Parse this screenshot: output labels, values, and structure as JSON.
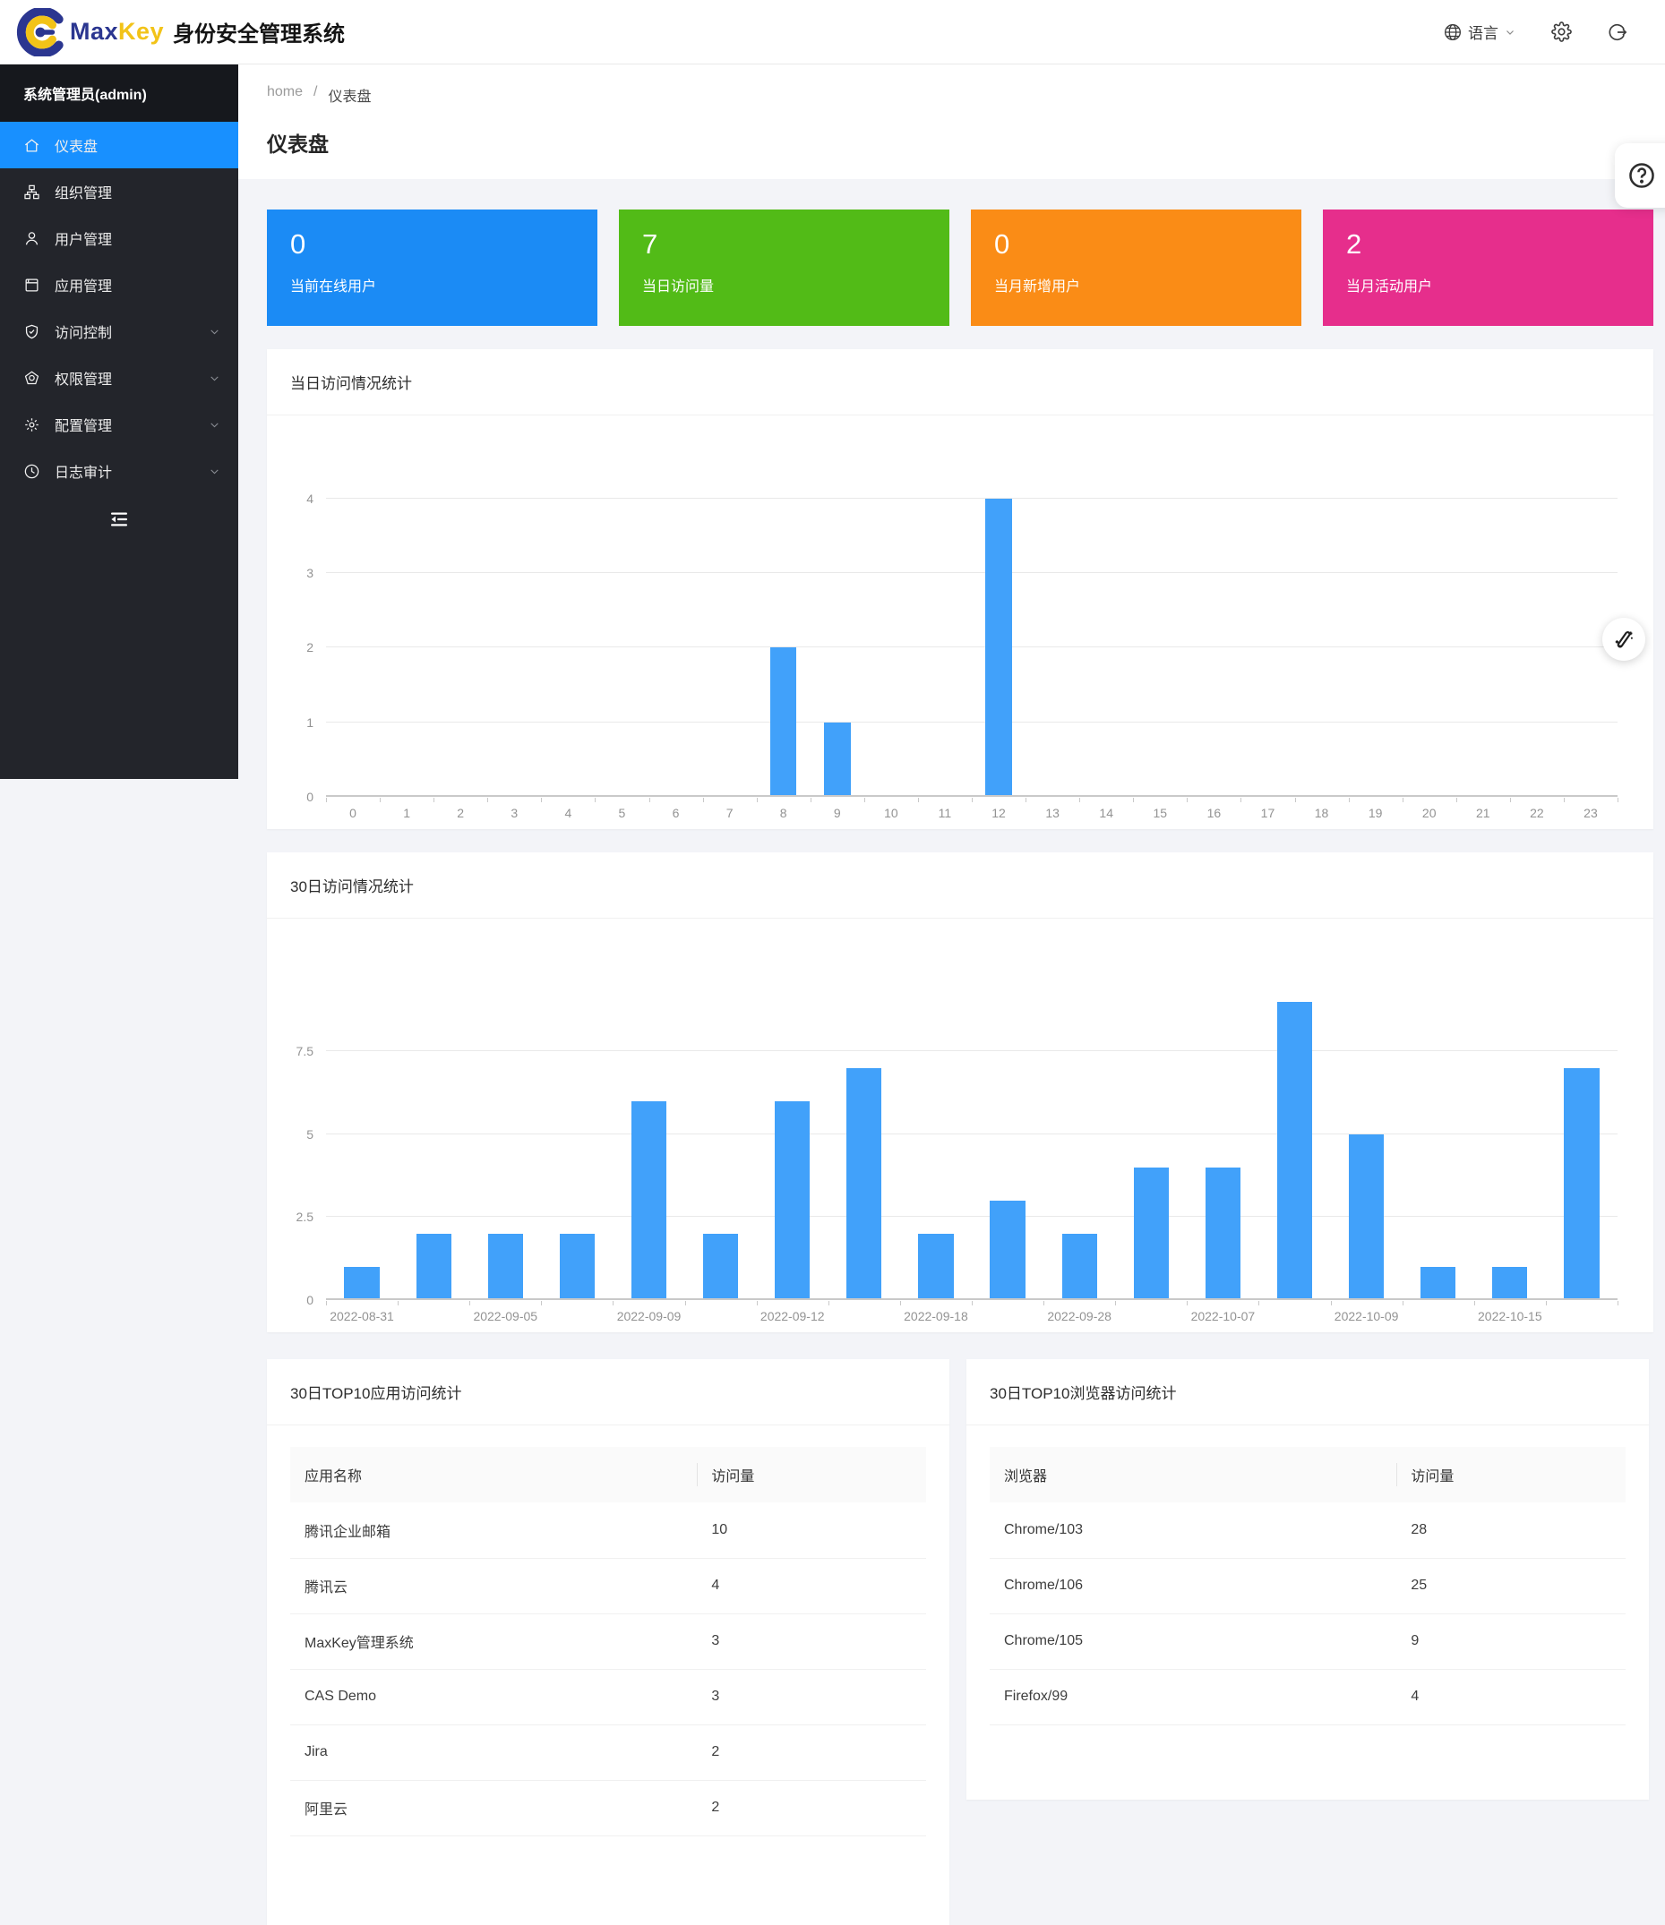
{
  "header": {
    "brand_max": "Max",
    "brand_key": "Key",
    "brand_title": "身份安全管理系统",
    "language_label": "语言",
    "brand_blue": "#2b3690",
    "brand_gold": "#f2c318"
  },
  "sidebar": {
    "user": "系统管理员(admin)",
    "active_color": "#1890ff",
    "items": [
      {
        "label": "仪表盘",
        "icon": "home-icon",
        "active": true,
        "expandable": false
      },
      {
        "label": "组织管理",
        "icon": "org-icon",
        "active": false,
        "expandable": false
      },
      {
        "label": "用户管理",
        "icon": "user-icon",
        "active": false,
        "expandable": false
      },
      {
        "label": "应用管理",
        "icon": "app-icon",
        "active": false,
        "expandable": false
      },
      {
        "label": "访问控制",
        "icon": "shield-icon",
        "active": false,
        "expandable": true
      },
      {
        "label": "权限管理",
        "icon": "badge-icon",
        "active": false,
        "expandable": true
      },
      {
        "label": "配置管理",
        "icon": "gear-icon",
        "active": false,
        "expandable": true
      },
      {
        "label": "日志审计",
        "icon": "clock-icon",
        "active": false,
        "expandable": true
      }
    ]
  },
  "breadcrumb": {
    "home": "home",
    "separator": "/",
    "current": "仪表盘"
  },
  "page_title": "仪表盘",
  "stat_cards": [
    {
      "value": "0",
      "label": "当前在线用户",
      "color": "#1b8bf5"
    },
    {
      "value": "7",
      "label": "当日访问量",
      "color": "#52bb17"
    },
    {
      "value": "0",
      "label": "当月新增用户",
      "color": "#fa8c16"
    },
    {
      "value": "2",
      "label": "当月活动用户",
      "color": "#e62e8c"
    }
  ],
  "chart_data": [
    {
      "type": "bar",
      "title": "当日访问情况统计",
      "xlabel": "",
      "ylabel": "",
      "categories": [
        "0",
        "1",
        "2",
        "3",
        "4",
        "5",
        "6",
        "7",
        "8",
        "9",
        "10",
        "11",
        "12",
        "13",
        "14",
        "15",
        "16",
        "17",
        "18",
        "19",
        "20",
        "21",
        "22",
        "23"
      ],
      "values": [
        0,
        0,
        0,
        0,
        0,
        0,
        0,
        0,
        2,
        1,
        0,
        0,
        4,
        0,
        0,
        0,
        0,
        0,
        0,
        0,
        0,
        0,
        0,
        0
      ],
      "ylim": [
        0,
        4
      ],
      "yticks": [
        0,
        1,
        2,
        3,
        4
      ],
      "bar_color": "#41a1fa",
      "grid": true,
      "legend": "none",
      "label_every": 1
    },
    {
      "type": "bar",
      "title": "30日访问情况统计",
      "xlabel": "",
      "ylabel": "",
      "categories": [
        "2022-08-31",
        "",
        "2022-09-05",
        "",
        "2022-09-09",
        "",
        "2022-09-12",
        "",
        "2022-09-18",
        "",
        "2022-09-28",
        "",
        "2022-10-07",
        "",
        "2022-10-09",
        "",
        "2022-10-15",
        ""
      ],
      "values": [
        1,
        2,
        2,
        2,
        6,
        2,
        6,
        7,
        2,
        3,
        2,
        4,
        4,
        9,
        5,
        1,
        1,
        7
      ],
      "ylim": [
        0,
        9
      ],
      "yticks": [
        0,
        2.5,
        5,
        7.5
      ],
      "bar_color": "#41a1fa",
      "grid": true,
      "legend": "none",
      "label_every": 2
    }
  ],
  "tables": [
    {
      "title": "30日TOP10应用访问统计",
      "columns": [
        "应用名称",
        "访问量"
      ],
      "rows": [
        [
          "腾讯企业邮箱",
          "10"
        ],
        [
          "腾讯云",
          "4"
        ],
        [
          "MaxKey管理系统",
          "3"
        ],
        [
          "CAS Demo",
          "3"
        ],
        [
          "Jira",
          "2"
        ],
        [
          "阿里云",
          "2"
        ]
      ]
    },
    {
      "title": "30日TOP10浏览器访问统计",
      "columns": [
        "浏览器",
        "访问量"
      ],
      "rows": [
        [
          "Chrome/103",
          "28"
        ],
        [
          "Chrome/106",
          "25"
        ],
        [
          "Chrome/105",
          "9"
        ],
        [
          "Firefox/99",
          "4"
        ]
      ]
    }
  ],
  "floating": {
    "help_icon": "question-circle-icon",
    "wand_icon": "magic-wand-icon"
  }
}
